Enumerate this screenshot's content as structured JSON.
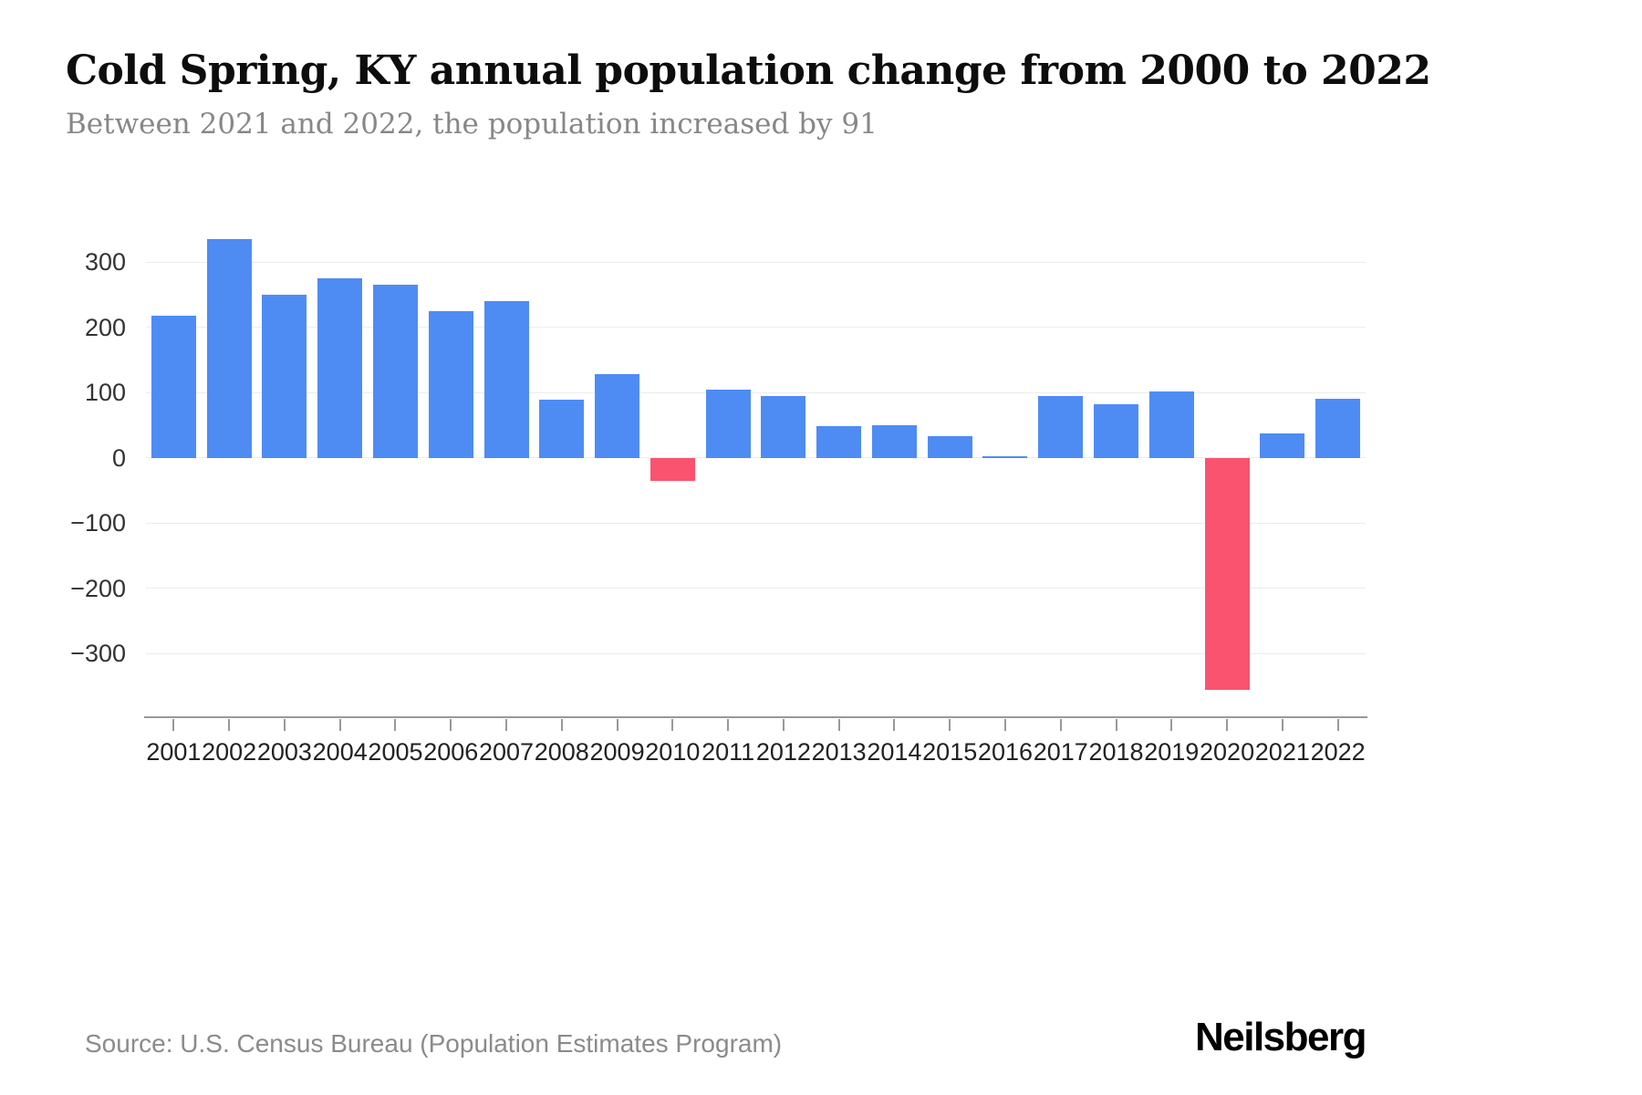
{
  "page": {
    "title": "Cold Spring, KY annual population change from 2000 to 2022",
    "subtitle": "Between 2021 and 2022, the population increased by 91",
    "source": "Source: U.S. Census Bureau (Population Estimates Program)",
    "brand": "Neilsberg"
  },
  "colors": {
    "positive_bar": "#4e8cf4",
    "negative_bar": "#f9536f",
    "gridline": "#ececec",
    "axis": "#999999",
    "title_text": "#0d0d0d",
    "subtitle_text": "#878787",
    "tick_text": "#222222",
    "source_text": "#8b8b8b"
  },
  "chart_data": {
    "type": "bar",
    "title": "Cold Spring, KY annual population change from 2000 to 2022",
    "subtitle": "Between 2021 and 2022, the population increased by 91",
    "xlabel": "",
    "ylabel": "",
    "categories": [
      "2001",
      "2002",
      "2003",
      "2004",
      "2005",
      "2006",
      "2007",
      "2008",
      "2009",
      "2010",
      "2011",
      "2012",
      "2013",
      "2014",
      "2015",
      "2016",
      "2017",
      "2018",
      "2019",
      "2020",
      "2021",
      "2022"
    ],
    "values": [
      218,
      335,
      250,
      275,
      265,
      225,
      240,
      89,
      129,
      -35,
      105,
      95,
      49,
      50,
      33,
      2,
      95,
      82,
      102,
      -355,
      37,
      91
    ],
    "ylim": [
      -396,
      380
    ],
    "yticks": [
      {
        "value": 300,
        "label": "300"
      },
      {
        "value": 200,
        "label": "200"
      },
      {
        "value": 100,
        "label": "100"
      },
      {
        "value": 0,
        "label": "0"
      },
      {
        "value": -100,
        "label": "−100"
      },
      {
        "value": -200,
        "label": "−200"
      },
      {
        "value": -300,
        "label": "−300"
      }
    ],
    "grid": true,
    "legend": false
  }
}
